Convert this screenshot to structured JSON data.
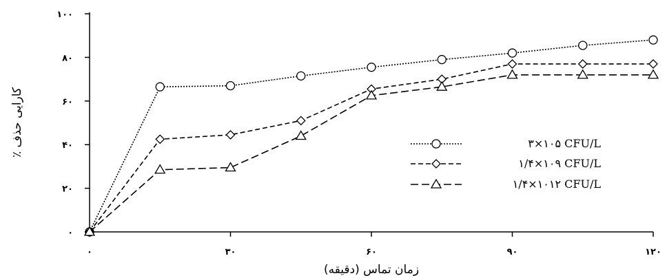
{
  "chart_data": {
    "type": "line",
    "title": "",
    "xlabel": "زمان تماس (دقیقه)",
    "ylabel": "کارایی حذف ٪",
    "xlim": [
      0,
      120
    ],
    "ylim": [
      0,
      100
    ],
    "x_ticks": [
      {
        "value": 0,
        "label": "۰"
      },
      {
        "value": 30,
        "label": "۳۰"
      },
      {
        "value": 60,
        "label": "۶۰"
      },
      {
        "value": 90,
        "label": "۹۰"
      },
      {
        "value": 120,
        "label": "۱۲۰"
      }
    ],
    "y_ticks": [
      {
        "value": 0,
        "label": "۰"
      },
      {
        "value": 20,
        "label": "۲۰"
      },
      {
        "value": 40,
        "label": "۴۰"
      },
      {
        "value": 60,
        "label": "۶۰"
      },
      {
        "value": 80,
        "label": "۸۰"
      },
      {
        "value": 100,
        "label": "۱۰۰"
      }
    ],
    "grid": false,
    "legend_position": "right",
    "x": [
      0,
      15,
      30,
      45,
      60,
      75,
      90,
      105,
      120
    ],
    "series": [
      {
        "name": "۳×۱۰۵ CFU/L",
        "marker": "circle",
        "line": "dotted",
        "color": "#000000",
        "values": [
          0,
          66.5,
          67,
          71.5,
          75.5,
          79,
          82,
          85.5,
          88
        ]
      },
      {
        "name": "۱/۴×۱۰۹ CFU/L",
        "marker": "diamond",
        "line": "dashed",
        "color": "#000000",
        "values": [
          0,
          42.5,
          44.5,
          51,
          65.5,
          70,
          77,
          77,
          77
        ]
      },
      {
        "name": "۱/۴×۱۰۱۲ CFU/L",
        "marker": "triangle",
        "line": "long-dashed",
        "color": "#000000",
        "values": [
          0,
          28.5,
          29.5,
          44,
          62.5,
          66.5,
          72,
          72,
          72
        ]
      }
    ]
  }
}
